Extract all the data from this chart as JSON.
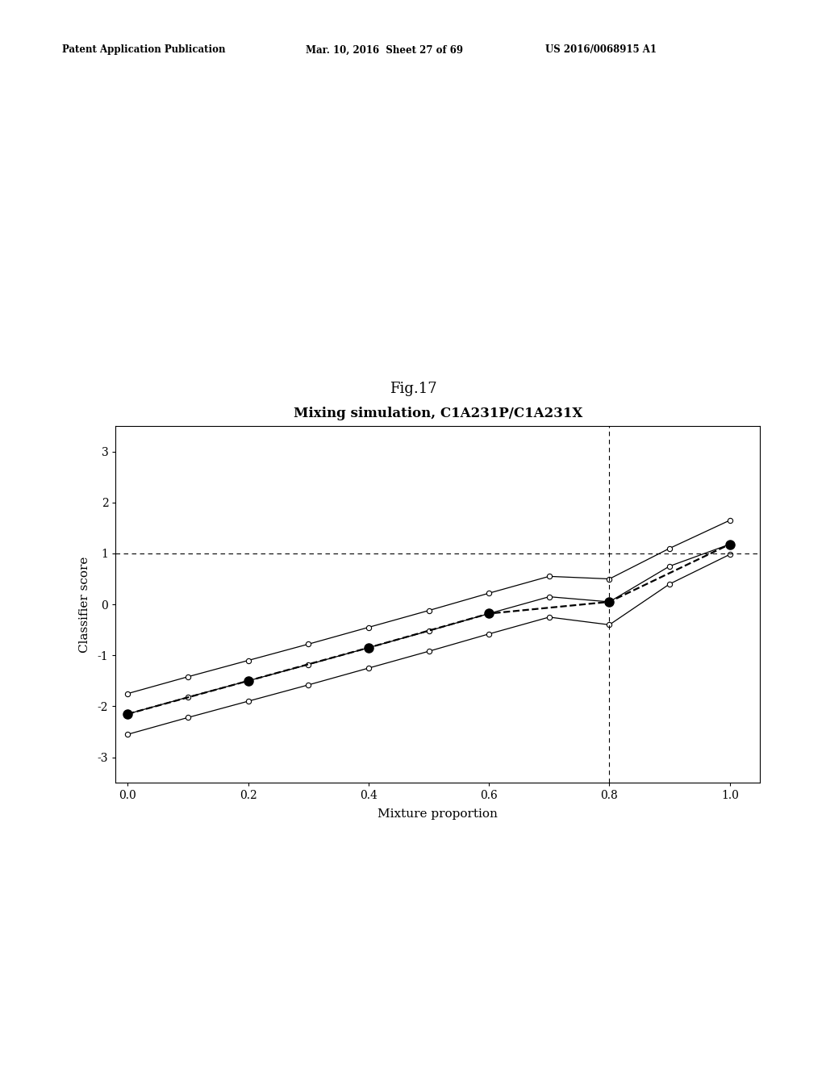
{
  "title": "Mixing simulation, C1A231P/C1A231X",
  "xlabel": "Mixture proportion",
  "ylabel": "Classifier score",
  "fig_label": "Fig.17",
  "header_left": "Patent Application Publication",
  "header_mid": "Mar. 10, 2016  Sheet 27 of 69",
  "header_right": "US 2016/0068915 A1",
  "x_ticks": [
    0.0,
    0.2,
    0.4,
    0.6,
    0.8,
    1.0
  ],
  "y_ticks": [
    -3,
    -2,
    -1,
    0,
    1,
    2,
    3
  ],
  "xlim": [
    -0.02,
    1.05
  ],
  "ylim": [
    -3.5,
    3.5
  ],
  "hline_y": 1.0,
  "vline_x": 0.8,
  "x_data": [
    0.0,
    0.1,
    0.2,
    0.3,
    0.4,
    0.5,
    0.6,
    0.7,
    0.8,
    0.9,
    1.0
  ],
  "mean_line": [
    -2.15,
    -1.82,
    -1.5,
    -1.18,
    -0.85,
    -0.52,
    -0.18,
    0.15,
    0.05,
    0.75,
    1.18
  ],
  "upper_ci": [
    -1.75,
    -1.42,
    -1.1,
    -0.78,
    -0.45,
    -0.12,
    0.22,
    0.55,
    0.5,
    1.1,
    1.65
  ],
  "lower_ci": [
    -2.55,
    -2.22,
    -1.9,
    -1.58,
    -1.25,
    -0.92,
    -0.58,
    -0.25,
    -0.4,
    0.4,
    0.98
  ],
  "filled_x": [
    0.0,
    0.2,
    0.4,
    0.6,
    0.8,
    1.0
  ],
  "filled_y": [
    -2.15,
    -1.5,
    -0.85,
    -0.18,
    0.05,
    1.18
  ],
  "background_color": "#ffffff",
  "line_color": "#000000"
}
